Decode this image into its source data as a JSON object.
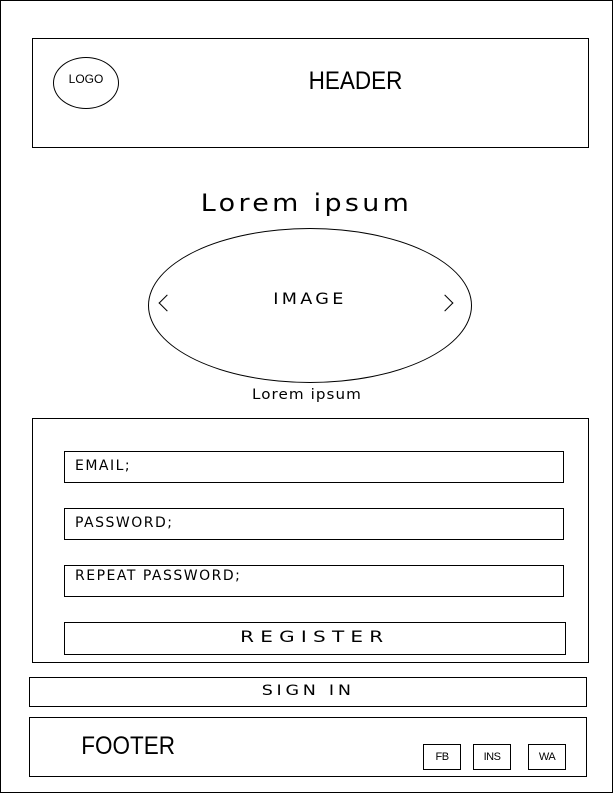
{
  "header": {
    "logo_text": "LOGO",
    "title": "HEADER"
  },
  "hero": {
    "headline": "Lorem ipsum",
    "carousel": {
      "image_label": "IMAGE",
      "prev_icon": "chevron-left-icon",
      "next_icon": "chevron-right-icon"
    },
    "caption": "Lorem ipsum"
  },
  "form": {
    "email_label": "EMAIL;",
    "password_label": "PASSWORD;",
    "repeat_password_label": "REPEAT PASSWORD;",
    "register_label": "REGISTER"
  },
  "signin_label": "SIGN IN",
  "footer": {
    "title": "FOOTER",
    "social": [
      "FB",
      "INS",
      "WA"
    ]
  }
}
